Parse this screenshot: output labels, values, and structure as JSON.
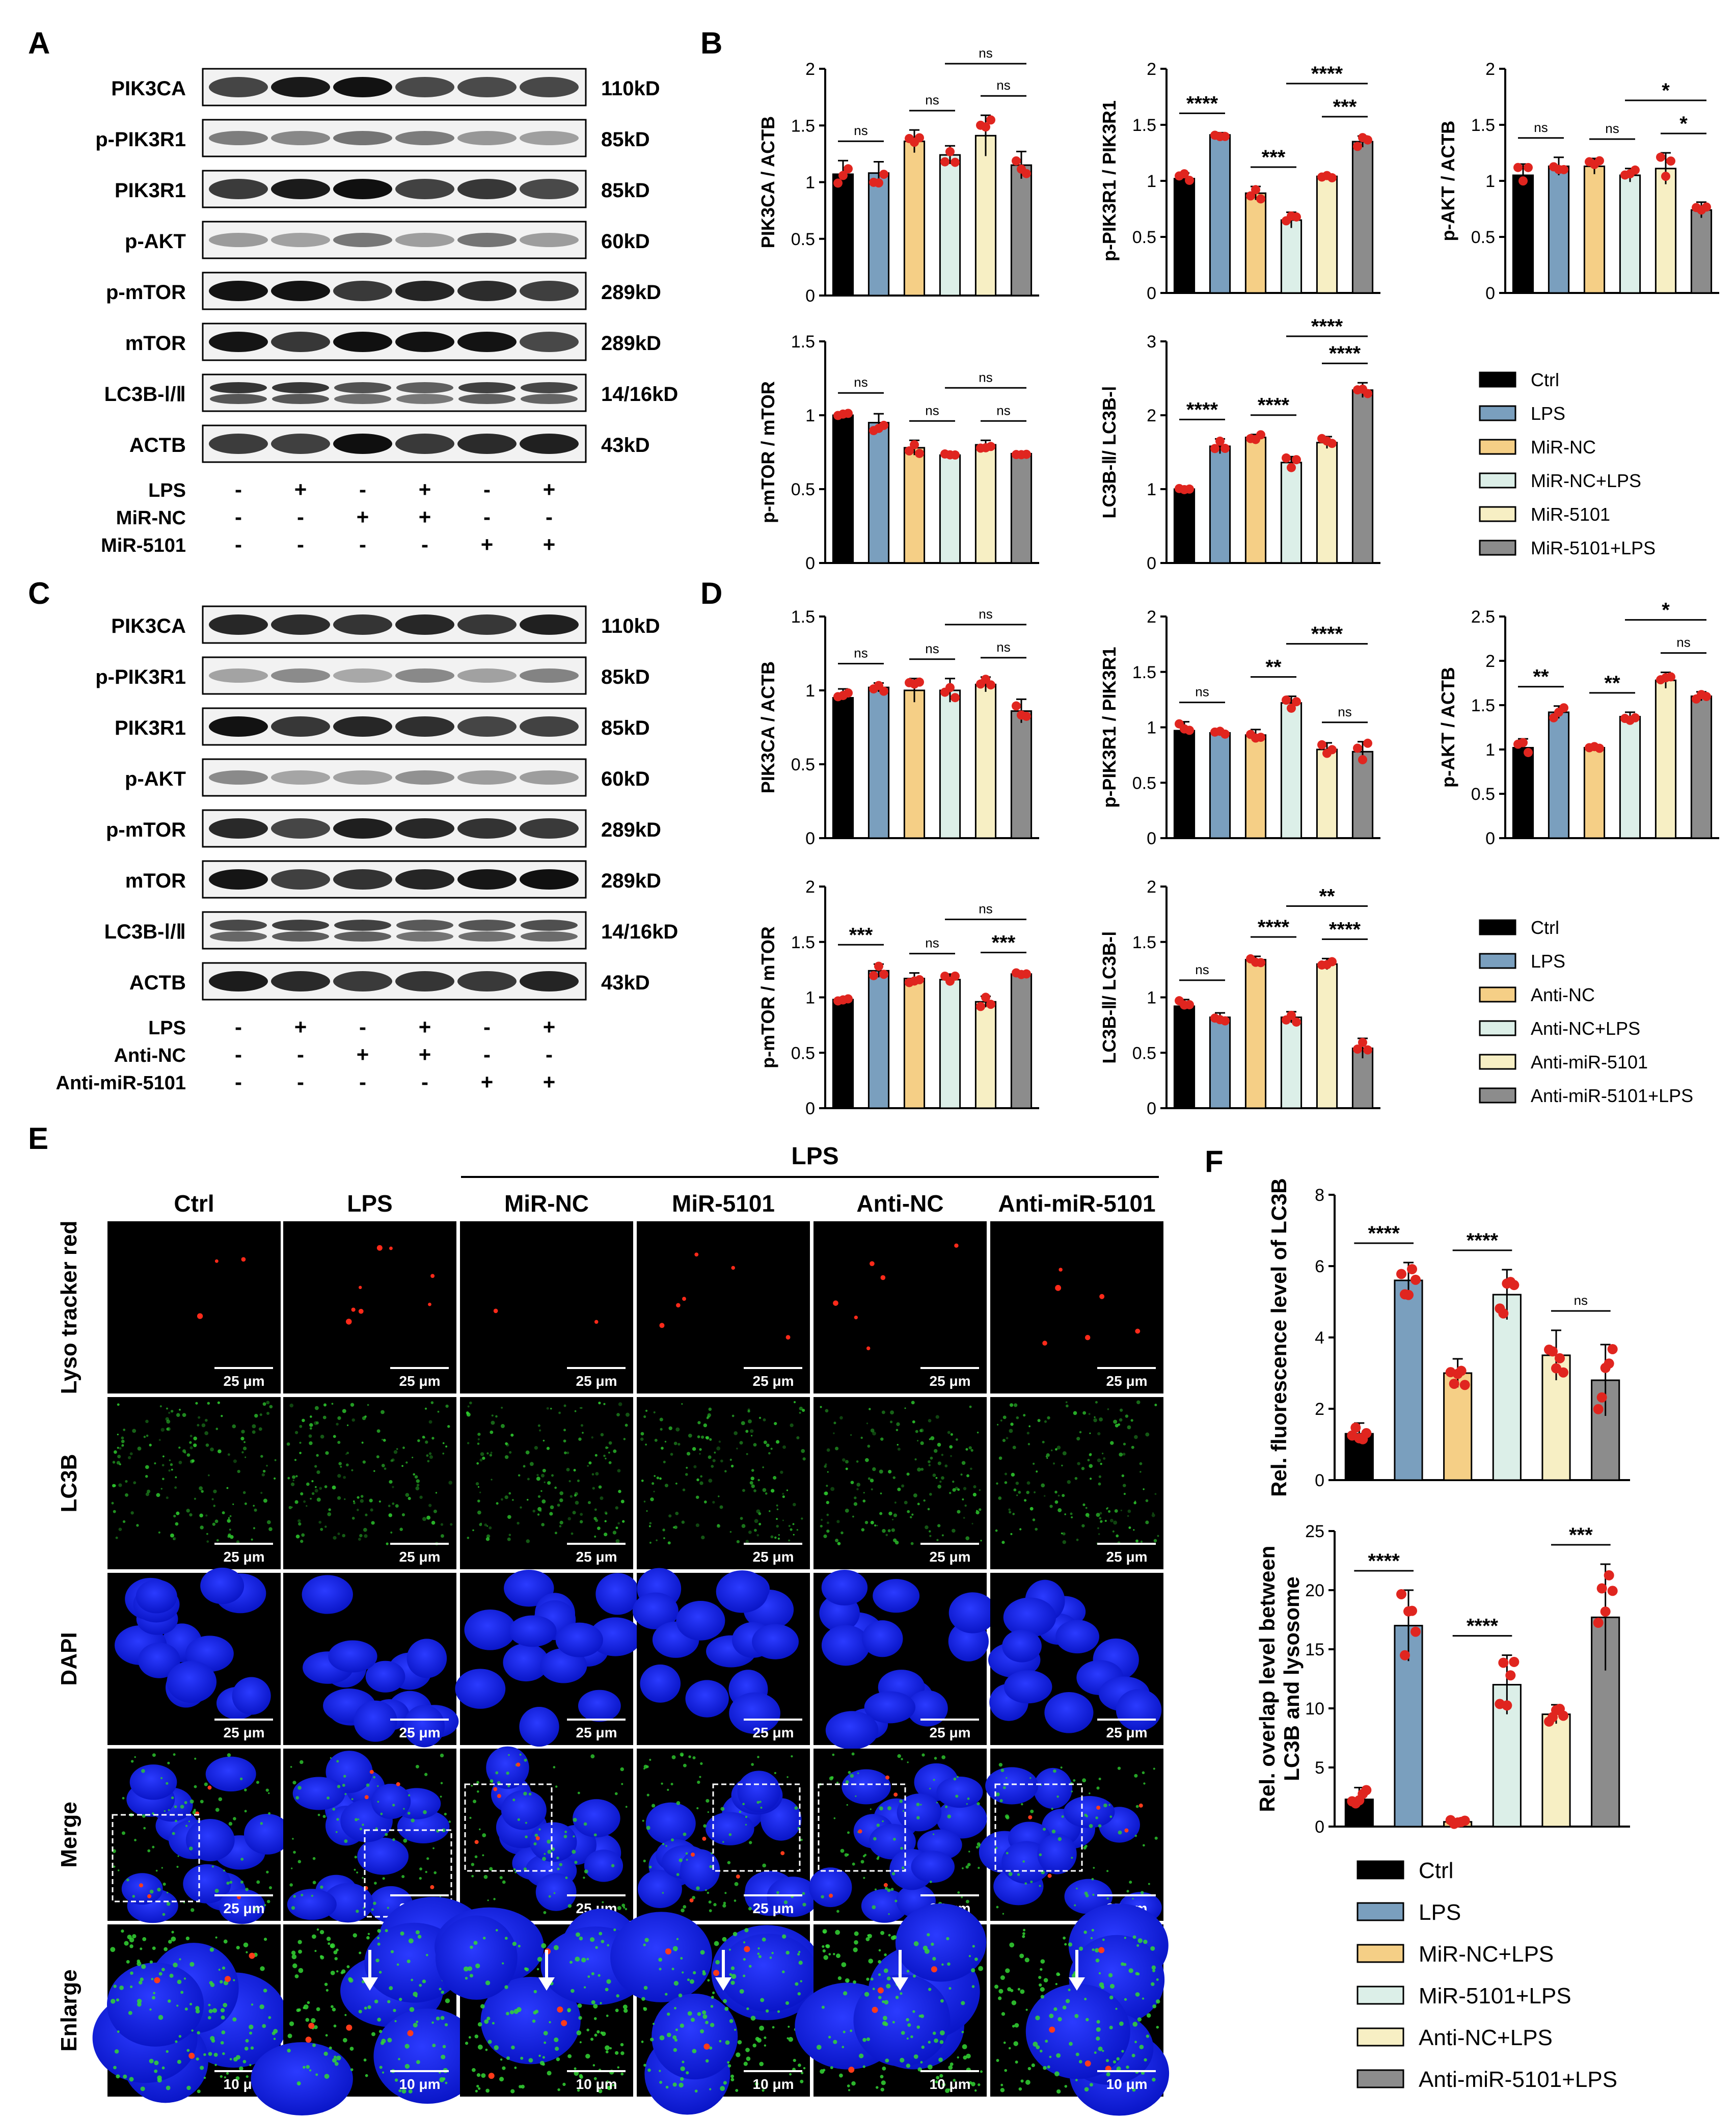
{
  "colors": {
    "ctrl": "#000000",
    "lps": "#7a9fbe",
    "nc": "#f5cf86",
    "nc_lps": "#dcefe8",
    "mir": "#f7efc4",
    "mir_lps": "#8c8c8c",
    "dot": "#e0251f"
  },
  "panel_labels": {
    "a": "A",
    "b": "B",
    "c": "C",
    "d": "D",
    "e": "E",
    "f": "F"
  },
  "blot_a": {
    "proteins": [
      "PIK3CA",
      "p-PIK3R1",
      "PIK3R1",
      "p-AKT",
      "p-mTOR",
      "mTOR",
      "LC3B-Ⅰ/Ⅱ",
      "ACTB"
    ],
    "sizes": [
      "110kD",
      "85kD",
      "85kD",
      "60kD",
      "289kD",
      "289kD",
      "14/16kD",
      "43kD"
    ],
    "treatments": [
      {
        "label": "LPS",
        "signs": [
          "-",
          "+",
          "-",
          "+",
          "-",
          "+"
        ]
      },
      {
        "label": "MiR-NC",
        "signs": [
          "-",
          "-",
          "+",
          "+",
          "-",
          "-"
        ]
      },
      {
        "label": "MiR-5101",
        "signs": [
          "-",
          "-",
          "-",
          "-",
          "+",
          "+"
        ]
      }
    ]
  },
  "blot_c": {
    "proteins": [
      "PIK3CA",
      "p-PIK3R1",
      "PIK3R1",
      "p-AKT",
      "p-mTOR",
      "mTOR",
      "LC3B-Ⅰ/Ⅱ",
      "ACTB"
    ],
    "sizes": [
      "110kD",
      "85kD",
      "85kD",
      "60kD",
      "289kD",
      "289kD",
      "14/16kD",
      "43kD"
    ],
    "treatments": [
      {
        "label": "LPS",
        "signs": [
          "-",
          "+",
          "-",
          "+",
          "-",
          "+"
        ]
      },
      {
        "label": "Anti-NC",
        "signs": [
          "-",
          "-",
          "+",
          "+",
          "-",
          "-"
        ]
      },
      {
        "label": "Anti-miR-5101",
        "signs": [
          "-",
          "-",
          "-",
          "-",
          "+",
          "+"
        ]
      }
    ]
  },
  "legend_b": [
    "Ctrl",
    "LPS",
    "MiR-NC",
    "MiR-NC+LPS",
    "MiR-5101",
    "MiR-5101+LPS"
  ],
  "legend_d": [
    "Ctrl",
    "LPS",
    "Anti-NC",
    "Anti-NC+LPS",
    "Anti-miR-5101",
    "Anti-miR-5101+LPS"
  ],
  "legend_f": [
    "Ctrl",
    "LPS",
    "MiR-NC+LPS",
    "MiR-5101+LPS",
    "Anti-NC+LPS",
    "Anti-miR-5101+LPS"
  ],
  "chart_data": [
    {
      "panel": "B",
      "type": "bar",
      "ylabel": "PIK3CA / ACTB",
      "ylim": [
        0,
        2.0
      ],
      "yticks": [
        0.0,
        0.5,
        1.0,
        1.5,
        2.0
      ],
      "values": [
        1.07,
        1.08,
        1.36,
        1.24,
        1.41,
        1.15
      ],
      "errors": [
        0.12,
        0.1,
        0.1,
        0.08,
        0.18,
        0.12
      ],
      "significance": [
        "ns",
        "ns",
        "ns",
        "ns"
      ]
    },
    {
      "panel": "B",
      "type": "bar",
      "ylabel": "p-PIK3R1 / PIK3R1",
      "ylim": [
        0,
        2.0
      ],
      "yticks": [
        0.0,
        0.5,
        1.0,
        1.5,
        2.0
      ],
      "values": [
        1.02,
        1.41,
        0.89,
        0.65,
        1.04,
        1.35
      ],
      "errors": [
        0.05,
        0.02,
        0.06,
        0.07,
        0.02,
        0.05
      ],
      "significance": [
        "****",
        "***",
        "****",
        "***"
      ]
    },
    {
      "panel": "B",
      "type": "bar",
      "ylabel": "p-AKT / ACTB",
      "ylim": [
        0,
        2.0
      ],
      "yticks": [
        0.0,
        0.5,
        1.0,
        1.5,
        2.0
      ],
      "values": [
        1.05,
        1.13,
        1.13,
        1.05,
        1.11,
        0.74
      ],
      "errors": [
        0.1,
        0.08,
        0.07,
        0.06,
        0.14,
        0.07
      ],
      "significance": [
        "ns",
        "ns",
        "*",
        "*"
      ]
    },
    {
      "panel": "B",
      "type": "bar",
      "ylabel": "p-mTOR / mTOR",
      "ylim": [
        0,
        1.5
      ],
      "yticks": [
        0.0,
        0.5,
        1.0,
        1.5
      ],
      "values": [
        1.0,
        0.95,
        0.78,
        0.73,
        0.8,
        0.74
      ],
      "errors": [
        0.02,
        0.06,
        0.05,
        0.01,
        0.03,
        0.01
      ],
      "significance": [
        "ns",
        "ns",
        "ns",
        "ns"
      ]
    },
    {
      "panel": "B",
      "type": "bar",
      "ylabel": "LC3B-Ⅱ/ LC3B-Ⅰ",
      "ylim": [
        0,
        3
      ],
      "yticks": [
        0,
        1,
        2,
        3
      ],
      "values": [
        1.0,
        1.58,
        1.7,
        1.36,
        1.63,
        2.34
      ],
      "errors": [
        0.02,
        0.1,
        0.04,
        0.08,
        0.08,
        0.1
      ],
      "significance": [
        "****",
        "****",
        "****",
        "****"
      ]
    },
    {
      "panel": "D",
      "type": "bar",
      "ylabel": "PIK3CA / ACTB",
      "ylim": [
        0,
        1.5
      ],
      "yticks": [
        0.0,
        0.5,
        1.0,
        1.5
      ],
      "values": [
        0.95,
        1.02,
        1.0,
        1.0,
        1.04,
        0.86
      ],
      "errors": [
        0.06,
        0.03,
        0.08,
        0.08,
        0.05,
        0.08
      ],
      "significance": [
        "ns",
        "ns",
        "ns",
        "ns"
      ]
    },
    {
      "panel": "D",
      "type": "bar",
      "ylabel": "p-PIK3R1 / PIK3R1",
      "ylim": [
        0,
        2.0
      ],
      "yticks": [
        0.0,
        0.5,
        1.0,
        1.5,
        2.0
      ],
      "values": [
        0.97,
        0.95,
        0.93,
        1.22,
        0.8,
        0.78
      ],
      "errors": [
        0.08,
        0.02,
        0.05,
        0.06,
        0.06,
        0.09
      ],
      "significance": [
        "ns",
        "**",
        "****",
        "ns"
      ]
    },
    {
      "panel": "D",
      "type": "bar",
      "ylabel": "p-AKT / ACTB",
      "ylim": [
        0,
        2.5
      ],
      "yticks": [
        0.0,
        0.5,
        1.0,
        1.5,
        2.0,
        2.5
      ],
      "values": [
        1.02,
        1.42,
        1.02,
        1.37,
        1.78,
        1.6
      ],
      "errors": [
        0.1,
        0.07,
        0.02,
        0.05,
        0.09,
        0.05
      ],
      "significance": [
        "**",
        "**",
        "*",
        "ns"
      ]
    },
    {
      "panel": "D",
      "type": "bar",
      "ylabel": "p-mTOR / mTOR",
      "ylim": [
        0,
        2.0
      ],
      "yticks": [
        0.0,
        0.5,
        1.0,
        1.5,
        2.0
      ],
      "values": [
        0.98,
        1.24,
        1.17,
        1.16,
        0.96,
        1.21
      ],
      "errors": [
        0.02,
        0.06,
        0.05,
        0.05,
        0.05,
        0.02
      ],
      "significance": [
        "***",
        "ns",
        "ns",
        "***"
      ]
    },
    {
      "panel": "D",
      "type": "bar",
      "ylabel": "LC3B-Ⅱ/ LC3B-Ⅰ",
      "ylim": [
        0,
        2.0
      ],
      "yticks": [
        0.0,
        0.5,
        1.0,
        1.5,
        2.0
      ],
      "values": [
        0.92,
        0.82,
        1.34,
        0.82,
        1.3,
        0.54
      ],
      "errors": [
        0.06,
        0.04,
        0.03,
        0.05,
        0.05,
        0.09
      ],
      "significance": [
        "ns",
        "****",
        "**",
        "****"
      ]
    },
    {
      "panel": "F",
      "type": "bar",
      "ylabel": "Rel. fluorescence level of LC3B",
      "ylim": [
        0,
        8
      ],
      "yticks": [
        0,
        2,
        4,
        6,
        8
      ],
      "values": [
        1.3,
        5.6,
        3.0,
        5.2,
        3.5,
        2.8
      ],
      "errors": [
        0.3,
        0.5,
        0.4,
        0.7,
        0.7,
        1.0
      ],
      "significance": [
        "****",
        "****",
        "ns"
      ]
    },
    {
      "panel": "F",
      "type": "bar",
      "ylabel": "Rel. overlap level between LC3B and lysosome",
      "ylim": [
        0,
        25
      ],
      "yticks": [
        0,
        5,
        10,
        15,
        20,
        25
      ],
      "values": [
        2.3,
        17.0,
        0.4,
        12.0,
        9.5,
        17.7
      ],
      "errors": [
        1.0,
        3.0,
        0.2,
        2.5,
        0.8,
        4.5
      ],
      "significance": [
        "****",
        "****",
        "***"
      ]
    }
  ],
  "micro": {
    "lps_header": "LPS",
    "columns": [
      "Ctrl",
      "LPS",
      "MiR-NC",
      "MiR-5101",
      "Anti-NC",
      "Anti-miR-5101"
    ],
    "rows": [
      "Lyso tracker red",
      "LC3B",
      "DAPI",
      "Merge",
      "Enlarge"
    ],
    "scale_main": "25 μm",
    "scale_enlarge": "10 μm"
  }
}
